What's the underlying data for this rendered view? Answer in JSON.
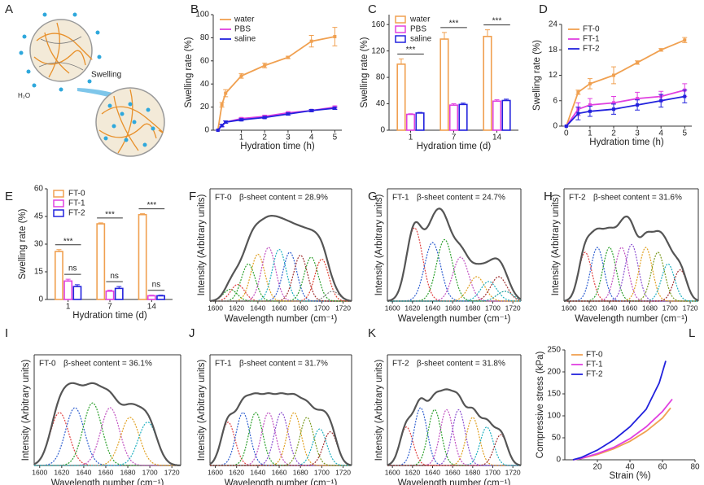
{
  "schematic": {
    "panel": "A",
    "label": "Swelling",
    "water": "H₂O"
  },
  "chart_data": [
    {
      "panel": "B",
      "type": "line",
      "markers": true,
      "xlabel": "Hydration time (h)",
      "ylabel": "Swelling rate (%)",
      "xlim": [
        -0.2,
        5.3
      ],
      "xticks": [
        1,
        2,
        3,
        4,
        5
      ],
      "ylim": [
        0,
        100
      ],
      "yticks": [
        0,
        20,
        40,
        60,
        80,
        100
      ],
      "legend": "upper left",
      "x": [
        0,
        0.17,
        0.33,
        1,
        2,
        3,
        4,
        5
      ],
      "series": [
        {
          "name": "water",
          "color": "#f0a050",
          "values": [
            0,
            22,
            32,
            47,
            56,
            63,
            77,
            81
          ],
          "errors": [
            0,
            2,
            3,
            2,
            2,
            1,
            5,
            8
          ]
        },
        {
          "name": "PBS",
          "color": "#e040e0",
          "values": [
            0,
            4,
            7,
            10,
            12,
            15,
            17,
            20
          ],
          "errors": [
            0,
            1,
            1,
            1,
            1,
            1,
            1,
            1
          ]
        },
        {
          "name": "saline",
          "color": "#2222dd",
          "values": [
            0,
            4,
            7,
            9,
            11,
            14,
            17,
            19
          ],
          "errors": [
            0,
            1,
            1,
            1,
            1,
            1,
            1,
            1
          ]
        }
      ]
    },
    {
      "panel": "C",
      "type": "bar",
      "xlabel": "Hydration time (d)",
      "ylabel": "Swelling rate (%)",
      "categories": [
        "1",
        "7",
        "14"
      ],
      "ylim": [
        0,
        175
      ],
      "yticks": [
        0,
        40,
        80,
        120,
        160
      ],
      "legend": "upper left",
      "significance": [
        "***",
        "***",
        "***"
      ],
      "series": [
        {
          "name": "water",
          "color": "#f0a050",
          "values": [
            100,
            138,
            142
          ],
          "errors": [
            8,
            10,
            10
          ]
        },
        {
          "name": "PBS",
          "color": "#e040e0",
          "values": [
            24,
            38,
            44
          ],
          "errors": [
            1,
            2,
            2
          ]
        },
        {
          "name": "saline",
          "color": "#2222dd",
          "values": [
            26,
            39,
            45
          ],
          "errors": [
            1,
            2,
            2
          ]
        }
      ]
    },
    {
      "panel": "D",
      "type": "line",
      "markers": true,
      "xlabel": "Hydration time (h)",
      "ylabel": "Swelling rate (%)",
      "xlim": [
        -0.2,
        5.3
      ],
      "xticks": [
        0,
        1,
        2,
        3,
        4,
        5
      ],
      "ylim": [
        0,
        24
      ],
      "yticks": [
        0,
        6,
        12,
        18,
        24
      ],
      "legend": "upper left",
      "x": [
        0,
        0.5,
        1,
        2,
        3,
        4,
        5
      ],
      "series": [
        {
          "name": "FT-0",
          "color": "#f0a050",
          "values": [
            0,
            8,
            10,
            12,
            15,
            18,
            20.3
          ],
          "errors": [
            0,
            0.5,
            1.2,
            2,
            0.4,
            0.3,
            0.6
          ]
        },
        {
          "name": "FT-1",
          "color": "#e040e0",
          "values": [
            0,
            4,
            5,
            5.5,
            6.5,
            7,
            8.5
          ],
          "errors": [
            0,
            1.5,
            1.5,
            1.5,
            1.5,
            1.2,
            1.5
          ]
        },
        {
          "name": "FT-2",
          "color": "#2222dd",
          "values": [
            0,
            3,
            3.5,
            4,
            5,
            6,
            7
          ],
          "errors": [
            0,
            1.5,
            1.2,
            1.2,
            1.2,
            1.5,
            1.5
          ]
        }
      ]
    },
    {
      "panel": "E",
      "type": "bar",
      "xlabel": "Hydration time (d)",
      "ylabel": "Swelling rate (%)",
      "categories": [
        "1",
        "7",
        "14"
      ],
      "ylim": [
        0,
        60
      ],
      "yticks": [
        0,
        15,
        30,
        45,
        60
      ],
      "legend": "upper left",
      "significance": [
        [
          "***",
          "ns"
        ],
        [
          "***",
          "ns"
        ],
        [
          "***",
          "ns"
        ]
      ],
      "series": [
        {
          "name": "FT-0",
          "color": "#f0a050",
          "values": [
            26,
            41,
            46
          ],
          "errors": [
            1,
            0.5,
            0.5
          ]
        },
        {
          "name": "FT-1",
          "color": "#e040e0",
          "values": [
            10,
            4.5,
            2
          ],
          "errors": [
            1,
            0.5,
            0.3
          ]
        },
        {
          "name": "FT-2",
          "color": "#2222dd",
          "values": [
            7,
            6,
            2
          ],
          "errors": [
            1,
            1,
            0.3
          ]
        }
      ]
    },
    {
      "panel": "F",
      "type": "spectrum",
      "sample": "FT-0",
      "annotation": "β-sheet content = 28.9%",
      "xlabel": "Wavelength number (cm⁻¹)",
      "ylabel": "Intensity (Arbitrary units)",
      "xlim": [
        1595,
        1728
      ],
      "xticks": [
        1600,
        1620,
        1640,
        1660,
        1680,
        1700,
        1720
      ],
      "ylim": [
        0,
        1.15
      ],
      "sigma": 6.5,
      "components": [
        {
          "center": 1614,
          "height": 0.12,
          "color": "#2ca02c"
        },
        {
          "center": 1621,
          "height": 0.17,
          "color": "#e04040"
        },
        {
          "center": 1631,
          "height": 0.38,
          "color": "#2aa02a"
        },
        {
          "center": 1640,
          "height": 0.48,
          "color": "#e0a020"
        },
        {
          "center": 1650,
          "height": 0.55,
          "color": "#c050c0"
        },
        {
          "center": 1660,
          "height": 0.53,
          "color": "#20b0c0"
        },
        {
          "center": 1670,
          "height": 0.5,
          "color": "#3060d0"
        },
        {
          "center": 1680,
          "height": 0.47,
          "color": "#a03030"
        },
        {
          "center": 1690,
          "height": 0.45,
          "color": "#30a030"
        },
        {
          "center": 1700,
          "height": 0.43,
          "color": "#e04030"
        },
        {
          "center": 1710,
          "height": 0.1,
          "color": "#888888"
        }
      ]
    },
    {
      "panel": "G",
      "type": "spectrum",
      "sample": "FT-1",
      "annotation": "β-sheet content = 24.7%",
      "xlabel": "Wavelength number (cm⁻¹)",
      "ylabel": "Intensity (Arbitrary units)",
      "xlim": [
        1595,
        1728
      ],
      "xticks": [
        1600,
        1620,
        1640,
        1660,
        1680,
        1700,
        1720
      ],
      "ylim": [
        0,
        1.15
      ],
      "sigma": 8,
      "components": [
        {
          "center": 1622,
          "height": 0.75,
          "color": "#e04040"
        },
        {
          "center": 1640,
          "height": 0.6,
          "color": "#3060d0"
        },
        {
          "center": 1652,
          "height": 0.63,
          "color": "#2ca02c"
        },
        {
          "center": 1668,
          "height": 0.45,
          "color": "#c050c0"
        },
        {
          "center": 1684,
          "height": 0.25,
          "color": "#e0a020"
        },
        {
          "center": 1696,
          "height": 0.2,
          "color": "#20b0c0"
        },
        {
          "center": 1706,
          "height": 0.25,
          "color": "#a03030"
        },
        {
          "center": 1712,
          "height": 0.1,
          "color": "#20a0a0"
        }
      ]
    },
    {
      "panel": "H",
      "type": "spectrum",
      "sample": "FT-2",
      "annotation": "β-sheet content = 31.6%",
      "xlabel": "Wavelength number (cm⁻¹)",
      "ylabel": "Intensity (Arbitrary units)",
      "xlim": [
        1595,
        1728
      ],
      "xticks": [
        1600,
        1620,
        1640,
        1660,
        1680,
        1700,
        1720
      ],
      "ylim": [
        0,
        1.15
      ],
      "sigma": 6.5,
      "components": [
        {
          "center": 1616,
          "height": 0.5,
          "color": "#e04040"
        },
        {
          "center": 1628,
          "height": 0.55,
          "color": "#3060d0"
        },
        {
          "center": 1640,
          "height": 0.55,
          "color": "#2ca02c"
        },
        {
          "center": 1652,
          "height": 0.55,
          "color": "#c050c0"
        },
        {
          "center": 1662,
          "height": 0.58,
          "color": "#8a4fd0"
        },
        {
          "center": 1676,
          "height": 0.55,
          "color": "#e0a020"
        },
        {
          "center": 1688,
          "height": 0.5,
          "color": "#7a9a20"
        },
        {
          "center": 1698,
          "height": 0.38,
          "color": "#20b0c0"
        },
        {
          "center": 1710,
          "height": 0.32,
          "color": "#a03030"
        }
      ]
    },
    {
      "panel": "I",
      "type": "spectrum",
      "sample": "FT-0",
      "annotation": "β-sheet content = 36.1%",
      "xlabel": "Wavelength number (cm⁻¹)",
      "ylabel": "Intensity (Arbitrary units)",
      "xlim": [
        1595,
        1728
      ],
      "xticks": [
        1600,
        1620,
        1640,
        1660,
        1680,
        1700,
        1720
      ],
      "ylim": [
        0,
        1.15
      ],
      "sigma": 8.5,
      "components": [
        {
          "center": 1618,
          "height": 0.55,
          "color": "#e04040"
        },
        {
          "center": 1632,
          "height": 0.6,
          "color": "#3060d0"
        },
        {
          "center": 1648,
          "height": 0.65,
          "color": "#2ca02c"
        },
        {
          "center": 1664,
          "height": 0.6,
          "color": "#c050c0"
        },
        {
          "center": 1682,
          "height": 0.5,
          "color": "#e0a020"
        },
        {
          "center": 1698,
          "height": 0.45,
          "color": "#20b0c0"
        }
      ]
    },
    {
      "panel": "J",
      "type": "spectrum",
      "sample": "FT-1",
      "annotation": "β-sheet content = 31.7%",
      "xlabel": "Wavelength number (cm⁻¹)",
      "ylabel": "Intensity (Arbitrary units)",
      "xlim": [
        1595,
        1728
      ],
      "xticks": [
        1600,
        1620,
        1640,
        1660,
        1680,
        1700,
        1720
      ],
      "ylim": [
        0,
        1.15
      ],
      "sigma": 6.5,
      "components": [
        {
          "center": 1612,
          "height": 0.45,
          "color": "#e04040"
        },
        {
          "center": 1626,
          "height": 0.55,
          "color": "#3060d0"
        },
        {
          "center": 1638,
          "height": 0.55,
          "color": "#2ca02c"
        },
        {
          "center": 1650,
          "height": 0.55,
          "color": "#c050c0"
        },
        {
          "center": 1662,
          "height": 0.55,
          "color": "#8a4fd0"
        },
        {
          "center": 1674,
          "height": 0.55,
          "color": "#e0a020"
        },
        {
          "center": 1686,
          "height": 0.5,
          "color": "#7a9a20"
        },
        {
          "center": 1698,
          "height": 0.38,
          "color": "#20b0c0"
        },
        {
          "center": 1708,
          "height": 0.35,
          "color": "#a03030"
        }
      ]
    },
    {
      "panel": "K",
      "type": "spectrum",
      "sample": "FT-2",
      "annotation": "β-sheet content = 31.8%",
      "xlabel": "Wavelength number (cm⁻¹)",
      "ylabel": "Intensity (Arbitrary units)",
      "xlim": [
        1595,
        1728
      ],
      "xticks": [
        1600,
        1620,
        1640,
        1660,
        1680,
        1700,
        1720
      ],
      "ylim": [
        0,
        1.15
      ],
      "sigma": 6.5,
      "components": [
        {
          "center": 1614,
          "height": 0.4,
          "color": "#e04040"
        },
        {
          "center": 1628,
          "height": 0.6,
          "color": "#3060d0"
        },
        {
          "center": 1642,
          "height": 0.58,
          "color": "#2ca02c"
        },
        {
          "center": 1654,
          "height": 0.58,
          "color": "#c050c0"
        },
        {
          "center": 1666,
          "height": 0.58,
          "color": "#8a4fd0"
        },
        {
          "center": 1680,
          "height": 0.5,
          "color": "#e0a020"
        },
        {
          "center": 1694,
          "height": 0.4,
          "color": "#20b0c0"
        },
        {
          "center": 1708,
          "height": 0.32,
          "color": "#a03030"
        }
      ]
    },
    {
      "panel": "L",
      "type": "line",
      "markers": false,
      "xlabel": "Strain (%)",
      "ylabel": "Compressive stress (kPa)",
      "xlim": [
        0,
        80
      ],
      "xticks": [
        20,
        40,
        60,
        80
      ],
      "ylim": [
        0,
        250
      ],
      "yticks": [
        0,
        50,
        100,
        150,
        200,
        250
      ],
      "legend": "upper left",
      "series": [
        {
          "name": "FT-0",
          "color": "#f0a050",
          "x": [
            5,
            10,
            20,
            30,
            40,
            50,
            60,
            65
          ],
          "values": [
            0,
            3,
            12,
            25,
            42,
            65,
            95,
            118
          ]
        },
        {
          "name": "FT-1",
          "color": "#e040e0",
          "x": [
            5,
            10,
            20,
            30,
            40,
            50,
            60,
            66
          ],
          "values": [
            0,
            3,
            14,
            28,
            48,
            75,
            110,
            138
          ]
        },
        {
          "name": "FT-2",
          "color": "#2222dd",
          "x": [
            5,
            10,
            20,
            30,
            40,
            50,
            58,
            62
          ],
          "values": [
            0,
            5,
            22,
            45,
            75,
            115,
            175,
            225
          ]
        }
      ]
    }
  ]
}
